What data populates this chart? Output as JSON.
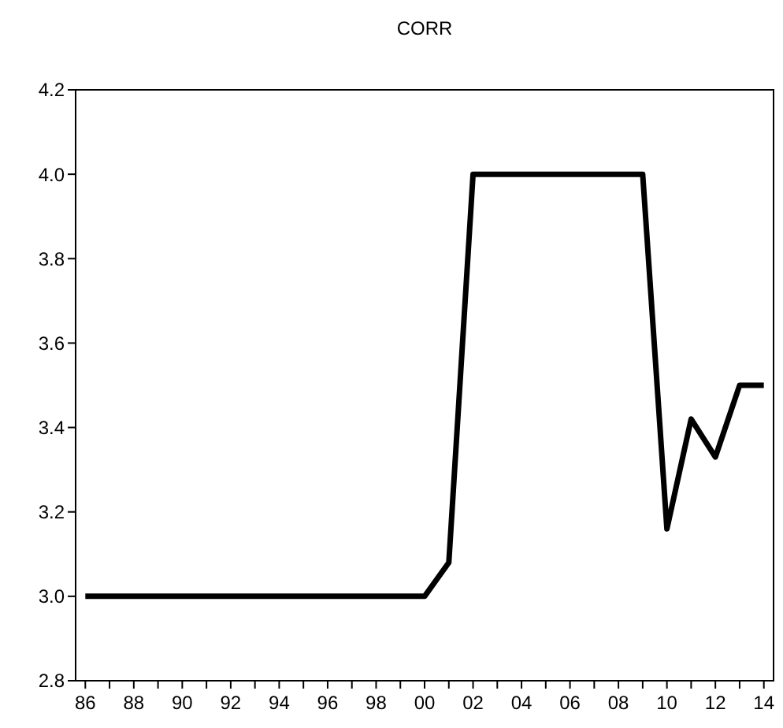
{
  "chart_data": {
    "type": "line",
    "title": "CORR",
    "x": [
      1986,
      1987,
      1988,
      1989,
      1990,
      1991,
      1992,
      1993,
      1994,
      1995,
      1996,
      1997,
      1998,
      1999,
      2000,
      2001,
      2002,
      2003,
      2004,
      2005,
      2006,
      2007,
      2008,
      2009,
      2010,
      2011,
      2012,
      2013,
      2014
    ],
    "series": [
      {
        "color": "#000000",
        "values": [
          3,
          3,
          3,
          3,
          3,
          3,
          3,
          3,
          3,
          3,
          3,
          3,
          3,
          3,
          3,
          3.08,
          4,
          4,
          4,
          4,
          4,
          4,
          4,
          4,
          3.16,
          3.42,
          3.33,
          3.5,
          3.5
        ]
      }
    ],
    "xlim": [
      1985.6,
      2014.4
    ],
    "xticks": [
      {
        "value": 1986,
        "label": "86"
      },
      {
        "value": 1987,
        "label": null
      },
      {
        "value": 1988,
        "label": "88"
      },
      {
        "value": 1989,
        "label": null
      },
      {
        "value": 1990,
        "label": "90"
      },
      {
        "value": 1991,
        "label": null
      },
      {
        "value": 1992,
        "label": "92"
      },
      {
        "value": 1993,
        "label": null
      },
      {
        "value": 1994,
        "label": "94"
      },
      {
        "value": 1995,
        "label": null
      },
      {
        "value": 1996,
        "label": "96"
      },
      {
        "value": 1997,
        "label": null
      },
      {
        "value": 1998,
        "label": "98"
      },
      {
        "value": 1999,
        "label": null
      },
      {
        "value": 2000,
        "label": "00"
      },
      {
        "value": 2001,
        "label": null
      },
      {
        "value": 2002,
        "label": "02"
      },
      {
        "value": 2003,
        "label": null
      },
      {
        "value": 2004,
        "label": "04"
      },
      {
        "value": 2005,
        "label": null
      },
      {
        "value": 2006,
        "label": "06"
      },
      {
        "value": 2007,
        "label": null
      },
      {
        "value": 2008,
        "label": "08"
      },
      {
        "value": 2009,
        "label": null
      },
      {
        "value": 2010,
        "label": "10"
      },
      {
        "value": 2011,
        "label": null
      },
      {
        "value": 2012,
        "label": "12"
      },
      {
        "value": 2013,
        "label": null
      },
      {
        "value": 2014,
        "label": "14"
      }
    ],
    "ylim": [
      2.8,
      4.2
    ],
    "yticks": [
      2.8,
      {
        "value": 3,
        "label": "3.0"
      },
      3.2,
      3.4,
      3.6,
      3.8,
      {
        "value": 4,
        "label": "4.0"
      },
      4.2
    ],
    "grid": false,
    "marker": "none",
    "line_style": "solid"
  }
}
